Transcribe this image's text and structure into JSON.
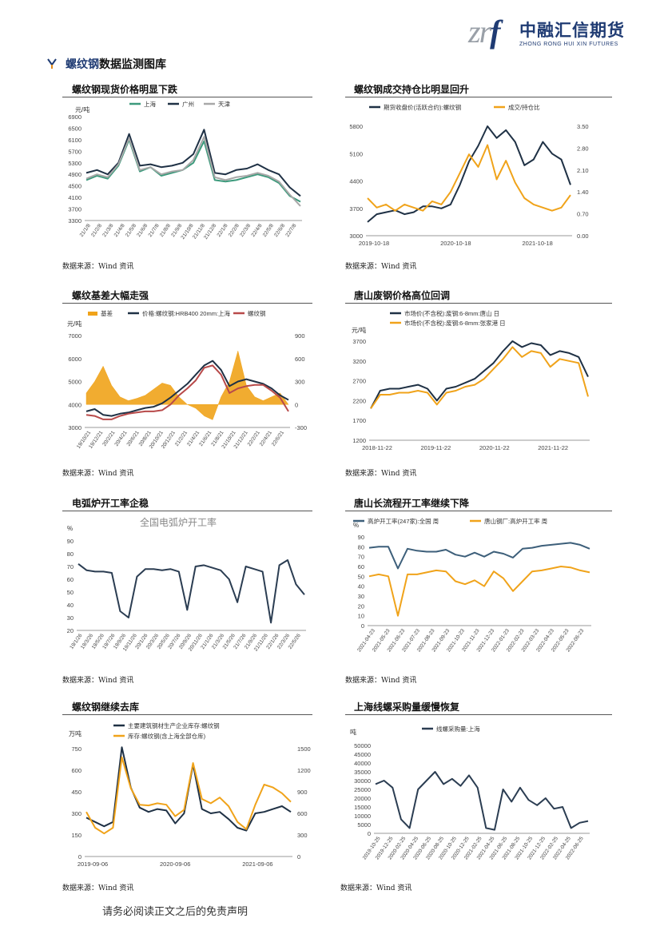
{
  "logo": {
    "mark": "zrf",
    "cn": "中融汇信期货",
    "en": "ZHONG RONG HUI XIN FUTURES"
  },
  "section": {
    "title_highlight": "螺纹钢",
    "title_rest": "数据监测图库"
  },
  "panels": [
    {
      "title": "螺纹钢现货价格明显下跌",
      "source": "数据来源：Wind 资讯"
    },
    {
      "title": "螺纹钢成交持仓比明显回升",
      "source": "数据来源：Wind 资讯"
    },
    {
      "title": "螺纹基差大幅走强",
      "source": "数据来源：Wind 资讯"
    },
    {
      "title": "唐山废钢价格高位回调",
      "source": "数据来源：Wind 资讯"
    },
    {
      "title": "电弧炉开工率企稳",
      "source": "数据来源：Wind 资讯"
    },
    {
      "title": "唐山长流程开工率继续下降",
      "source": "数据来源：Wind 资讯"
    },
    {
      "title": "螺纹钢继续去库",
      "source": "数据来源：Wind 资讯"
    },
    {
      "title": "上海线螺采购量缓慢恢复",
      "source": "数据来源：Wind 资讯"
    }
  ],
  "footer": "请务必阅读正文之后的免责声明",
  "chart_data": [
    {
      "type": "line",
      "unit": "元/吨",
      "ylim": [
        3300,
        6900
      ],
      "yticks": [
        "6900",
        "6500",
        "6100",
        "5700",
        "5300",
        "4900",
        "4500",
        "4100",
        "3700",
        "3300"
      ],
      "xticks": [
        "21/1/8",
        "21/2/8",
        "21/3/8",
        "21/4/8",
        "21/5/8",
        "21/6/8",
        "21/7/8",
        "21/8/8",
        "21/9/8",
        "21/10/8",
        "21/11/8",
        "21/12/8",
        "22/1/8",
        "22/2/8",
        "22/3/8",
        "22/4/8",
        "22/5/8",
        "22/6/8",
        "22/7/8"
      ],
      "series": [
        {
          "name": "上海",
          "color": "#3c9a7c",
          "values": [
            4700,
            4850,
            4750,
            5200,
            6100,
            5000,
            5150,
            4850,
            4950,
            5050,
            5300,
            6050,
            4700,
            4650,
            4700,
            4800,
            4900,
            4800,
            4600,
            4150,
            3950
          ]
        },
        {
          "name": "广州",
          "color": "#1f3145",
          "values": [
            4950,
            5050,
            4900,
            5300,
            6300,
            5200,
            5250,
            5150,
            5200,
            5300,
            5600,
            6450,
            4950,
            4900,
            5050,
            5100,
            5250,
            5050,
            4900,
            4450,
            4150
          ]
        },
        {
          "name": "天津",
          "color": "#a8a8a8",
          "values": [
            4750,
            4900,
            4800,
            5250,
            6150,
            5050,
            5150,
            4900,
            5000,
            5050,
            5400,
            6200,
            4800,
            4700,
            4800,
            4850,
            4950,
            4850,
            4650,
            4200,
            3800
          ]
        }
      ]
    },
    {
      "type": "line",
      "ylim": [
        3000,
        5800
      ],
      "y2lim": [
        0.0,
        3.5
      ],
      "yticks": [
        "5800",
        "5100",
        "4400",
        "3700",
        "3000"
      ],
      "y2ticks": [
        "3.50",
        "2.80",
        "2.10",
        "1.40",
        "0.70",
        "0.00"
      ],
      "xticks": [
        "2019-10-18",
        "2020-10-18",
        "2021-10-18"
      ],
      "series": [
        {
          "name": "期货收盘价(活跃合约):螺纹钢",
          "color": "#1f3145",
          "axis": "left",
          "values": [
            3350,
            3550,
            3600,
            3650,
            3550,
            3600,
            3750,
            3750,
            3700,
            3800,
            4300,
            4900,
            5300,
            5800,
            5500,
            5700,
            5400,
            4800,
            4950,
            5400,
            5100,
            4950,
            4300
          ]
        },
        {
          "name": "成交/持仓比",
          "color": "#f0a31a",
          "axis": "right",
          "values": [
            1.2,
            0.9,
            1.0,
            0.8,
            1.0,
            0.9,
            0.8,
            1.1,
            1.0,
            1.4,
            2.0,
            2.6,
            2.2,
            2.9,
            1.8,
            2.4,
            1.7,
            1.2,
            1.0,
            0.9,
            0.8,
            0.9,
            1.3
          ]
        }
      ]
    },
    {
      "type": "area",
      "unit": "元/吨",
      "ylim": [
        3000,
        7000
      ],
      "y2lim": [
        -300,
        900
      ],
      "yticks": [
        "7000",
        "6000",
        "5000",
        "4000",
        "3000"
      ],
      "y2ticks": [
        "900",
        "600",
        "300",
        "0",
        "-300"
      ],
      "xticks": [
        "19/10/21",
        "19/12/21",
        "20/2/21",
        "20/4/21",
        "20/6/21",
        "20/8/21",
        "20/10/21",
        "20/12/21",
        "21/2/21",
        "21/4/21",
        "21/6/21",
        "21/8/21",
        "21/10/21",
        "21/12/21",
        "22/2/21",
        "22/4/21",
        "22/6/21"
      ],
      "series": [
        {
          "name": "基差",
          "color": "#f0a31a",
          "axis": "right",
          "values": [
            150,
            300,
            500,
            250,
            100,
            50,
            80,
            120,
            200,
            280,
            250,
            100,
            0,
            -50,
            -150,
            -200,
            100,
            300,
            700,
            250,
            100,
            50,
            100,
            150,
            0
          ]
        },
        {
          "name": "价格:螺纹钢:HRB400 20mm:上海",
          "color": "#1f3145",
          "axis": "left",
          "values": [
            3700,
            3800,
            3550,
            3500,
            3600,
            3650,
            3750,
            3850,
            3900,
            4050,
            4300,
            4600,
            4900,
            5300,
            5700,
            5900,
            5500,
            4800,
            5000,
            5100,
            5000,
            4900,
            4700,
            4400,
            4200
          ]
        },
        {
          "name": "螺纹钢",
          "color": "#b84a4a",
          "axis": "left",
          "values": [
            3550,
            3500,
            3350,
            3350,
            3500,
            3600,
            3650,
            3700,
            3700,
            3750,
            4000,
            4400,
            4700,
            5050,
            5600,
            5700,
            5300,
            4500,
            4700,
            4800,
            4850,
            4850,
            4600,
            4300,
            3700
          ]
        }
      ]
    },
    {
      "type": "line",
      "unit": "元/吨",
      "ylim": [
        1200,
        3700
      ],
      "yticks": [
        "3700",
        "3200",
        "2700",
        "2200",
        "1700",
        "1200"
      ],
      "xticks": [
        "2018-11-22",
        "2019-11-22",
        "2020-11-22",
        "2021-11-22"
      ],
      "series": [
        {
          "name": "市场价(不含税):废钢:6-8mm:唐山 日",
          "color": "#1f3145",
          "values": [
            2000,
            2450,
            2500,
            2500,
            2550,
            2600,
            2500,
            2200,
            2500,
            2550,
            2650,
            2750,
            2950,
            3150,
            3450,
            3700,
            3550,
            3650,
            3600,
            3350,
            3450,
            3400,
            3300,
            2800
          ]
        },
        {
          "name": "市场价(不含税):废钢:6-8mm:张家港 日",
          "color": "#f0a31a",
          "values": [
            2000,
            2350,
            2350,
            2400,
            2400,
            2450,
            2400,
            2100,
            2400,
            2450,
            2550,
            2600,
            2750,
            3000,
            3250,
            3550,
            3300,
            3450,
            3400,
            3050,
            3250,
            3200,
            3150,
            2300
          ]
        }
      ]
    },
    {
      "type": "line",
      "title": "全国电弧炉开工率",
      "unit": "%",
      "ylim": [
        20,
        90
      ],
      "yticks": [
        "90",
        "80",
        "70",
        "60",
        "50",
        "40",
        "30",
        "20"
      ],
      "xticks": [
        "19/1/26",
        "19/3/26",
        "19/5/26",
        "19/7/26",
        "19/9/26",
        "19/11/26",
        "20/1/26",
        "20/3/26",
        "20/5/26",
        "20/7/26",
        "20/9/26",
        "20/11/26",
        "21/1/26",
        "21/3/26",
        "21/5/26",
        "21/7/26",
        "21/9/26",
        "21/11/26",
        "22/1/26",
        "22/3/26",
        "22/5/26"
      ],
      "series": [
        {
          "name": "电弧炉开工率",
          "color": "#2b3d52",
          "values": [
            72,
            67,
            66,
            66,
            65,
            35,
            30,
            62,
            68,
            68,
            67,
            68,
            66,
            36,
            70,
            71,
            69,
            67,
            60,
            42,
            70,
            68,
            66,
            26,
            71,
            75,
            56,
            48
          ]
        }
      ]
    },
    {
      "type": "line",
      "unit": "%",
      "ylim": [
        0,
        90
      ],
      "yticks": [
        "90",
        "80",
        "70",
        "60",
        "50",
        "40",
        "30",
        "20",
        "10",
        "0"
      ],
      "xticks": [
        "2021-04-23",
        "2021-05-23",
        "2021-06-23",
        "2021-07-23",
        "2021-08-23",
        "2021-09-23",
        "2021-10-23",
        "2021-11-23",
        "2021-12-23",
        "2022-01-23",
        "2022-02-23",
        "2022-03-23",
        "2022-04-23",
        "2022-05-23",
        "2022-06-23"
      ],
      "series": [
        {
          "name": "高炉开工率(247家):全国 周",
          "color": "#3d5f7a",
          "values": [
            79,
            80,
            80,
            58,
            78,
            76,
            75,
            75,
            77,
            72,
            70,
            74,
            70,
            75,
            73,
            69,
            78,
            79,
            81,
            82,
            83,
            84,
            82,
            78
          ]
        },
        {
          "name": "唐山钢厂:高炉开工率 周",
          "color": "#f0a31a",
          "values": [
            50,
            52,
            50,
            10,
            52,
            52,
            54,
            56,
            55,
            45,
            42,
            46,
            40,
            55,
            48,
            35,
            45,
            55,
            56,
            58,
            60,
            59,
            56,
            54
          ]
        }
      ]
    },
    {
      "type": "line",
      "unit": "万吨",
      "ylim": [
        0,
        750
      ],
      "y2lim": [
        0,
        1500
      ],
      "yticks": [
        "750",
        "600",
        "450",
        "300",
        "150",
        "0"
      ],
      "y2ticks": [
        "1500",
        "1200",
        "900",
        "600",
        "300",
        "0"
      ],
      "xticks": [
        "2019-09-06",
        "2020-09-06",
        "2021-09-06"
      ],
      "series": [
        {
          "name": "主要建筑钢材生产企业库存:螺纹钢",
          "color": "#1f3145",
          "axis": "left",
          "values": [
            270,
            240,
            210,
            240,
            760,
            480,
            340,
            310,
            330,
            320,
            230,
            300,
            640,
            330,
            300,
            310,
            260,
            200,
            180,
            300,
            310,
            330,
            350,
            310
          ]
        },
        {
          "name": "库存:螺纹钢(含上海全部仓库)",
          "color": "#f0a31a",
          "axis": "right",
          "values": [
            620,
            400,
            320,
            400,
            1380,
            950,
            720,
            710,
            740,
            720,
            560,
            650,
            1300,
            800,
            740,
            820,
            700,
            480,
            380,
            720,
            1000,
            960,
            880,
            760
          ]
        }
      ]
    },
    {
      "type": "line",
      "unit": "吨",
      "ylim": [
        0,
        50000
      ],
      "yticks": [
        "50000",
        "45000",
        "40000",
        "35000",
        "30000",
        "25000",
        "20000",
        "15000",
        "10000",
        "5000",
        "0"
      ],
      "xticks": [
        "2019-10-25",
        "2019-12-25",
        "2020-02-25",
        "2020-04-25",
        "2020-06-25",
        "2020-08-25",
        "2020-10-25",
        "2020-12-25",
        "2021-02-25",
        "2021-04-25",
        "2021-06-25",
        "2021-08-25",
        "2021-10-25",
        "2021-12-25",
        "2022-02-25",
        "2022-04-25",
        "2022-06-25"
      ],
      "series": [
        {
          "name": "线螺采购量:上海",
          "color": "#2b3d52",
          "values": [
            28000,
            30000,
            26000,
            8000,
            3000,
            25000,
            30000,
            35000,
            28000,
            31000,
            27000,
            33000,
            26000,
            3000,
            2000,
            25000,
            18000,
            26000,
            19000,
            16000,
            20000,
            14000,
            15000,
            3000,
            6000,
            7000
          ]
        }
      ]
    }
  ]
}
